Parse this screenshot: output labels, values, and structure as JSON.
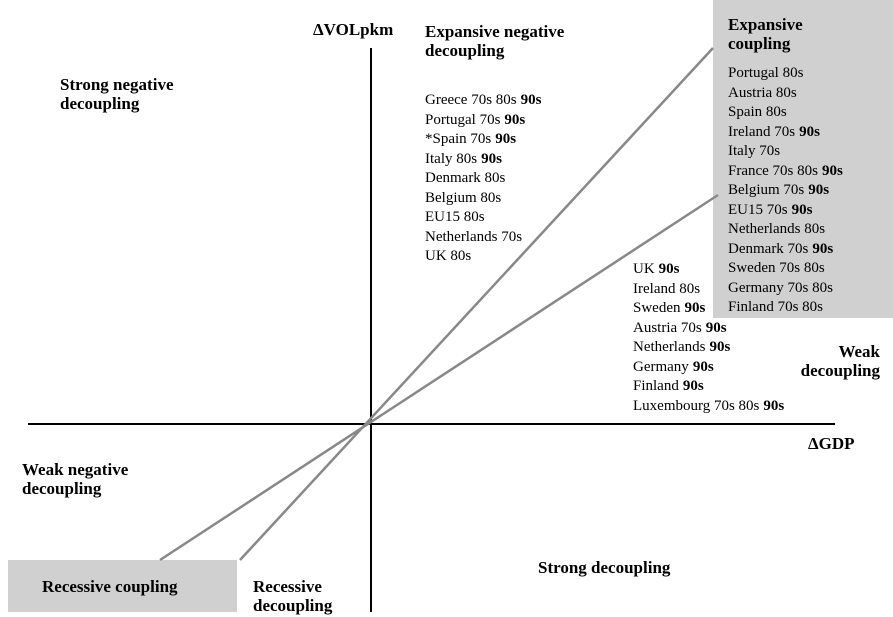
{
  "axes": {
    "y_label": "ΔVOLpkm",
    "x_label": "ΔGDP"
  },
  "regions": [
    {
      "label": "Strong negative decoupling"
    },
    {
      "label": "Expansive negative decoupling",
      "entries": [
        {
          "text": "Greece 70s 80s",
          "bold": "90s"
        },
        {
          "text": "Portugal 70s",
          "bold": "90s"
        },
        {
          "text": "*Spain 70s",
          "bold": "90s"
        },
        {
          "text": "Italy 80s",
          "bold": "90s"
        },
        {
          "text": "Denmark 80s"
        },
        {
          "text": "Belgium 80s"
        },
        {
          "text": "EU15 80s"
        },
        {
          "text": "Netherlands 70s"
        },
        {
          "text": "UK 80s"
        }
      ]
    },
    {
      "label": "Expansive coupling",
      "entries": [
        {
          "text": "Portugal 80s"
        },
        {
          "text": "Austria 80s"
        },
        {
          "text": "Spain 80s"
        },
        {
          "text": "Ireland 70s",
          "bold": "90s"
        },
        {
          "text": "Italy 70s"
        },
        {
          "text": "France 70s 80s",
          "bold": "90s"
        },
        {
          "text": "Belgium 70s",
          "bold": "90s"
        },
        {
          "text": "EU15 70s",
          "bold": "90s"
        },
        {
          "text": "Netherlands 80s"
        },
        {
          "text": "Denmark 70s",
          "bold": "90s"
        },
        {
          "text": "Sweden 70s 80s"
        },
        {
          "text": "Germany 70s 80s"
        },
        {
          "text": "Finland 70s 80s"
        }
      ]
    },
    {
      "label": "Weak decoupling",
      "entries": [
        {
          "text": "UK",
          "bold": "90s"
        },
        {
          "text": "Ireland 80s"
        },
        {
          "text": "Sweden",
          "bold": "90s"
        },
        {
          "text": "Austria 70s",
          "bold": "90s"
        },
        {
          "text": "Netherlands",
          "bold": "90s"
        },
        {
          "text": "Germany",
          "bold": "90s"
        },
        {
          "text": "Finland",
          "bold": "90s"
        },
        {
          "text": "Luxembourg 70s 80s",
          "bold": "90s"
        }
      ]
    },
    {
      "label": "Weak negative decoupling"
    },
    {
      "label": "Recessive coupling"
    },
    {
      "label": "Recessive decoupling"
    },
    {
      "label": "Strong decoupling"
    }
  ]
}
